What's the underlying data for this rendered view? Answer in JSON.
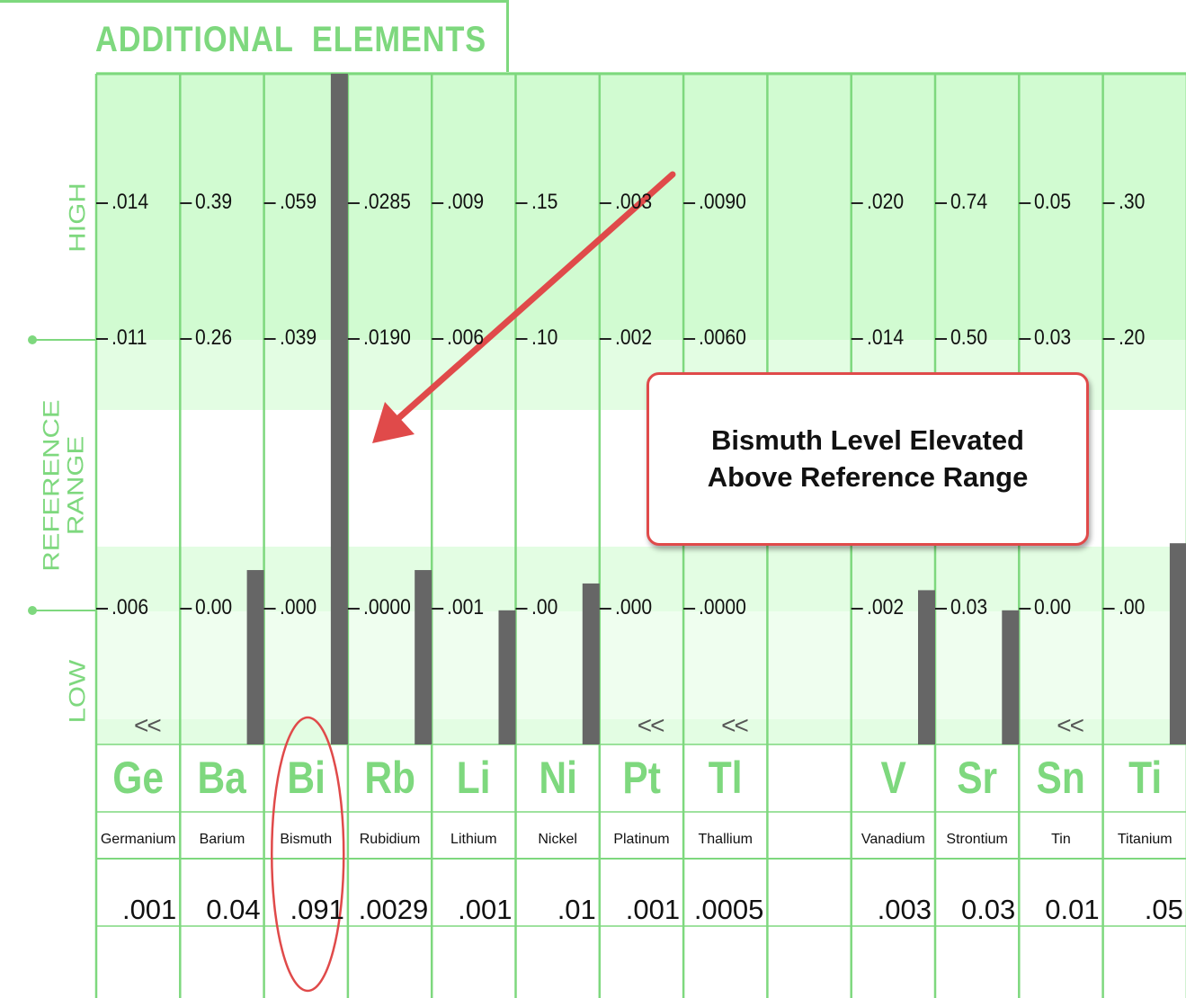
{
  "title": "ADDITIONAL  ELEMENTS",
  "axis": {
    "high": "HIGH",
    "reference_range": "REFERENCE RANGE",
    "low": "LOW"
  },
  "callout": {
    "line1": "Bismuth Level Elevated",
    "line2": "Above Reference Range"
  },
  "colors": {
    "grid": "#7ed87e",
    "band_dark": "#d1fbd1",
    "band_mid": "#e3fde3",
    "band_light": "#effeef",
    "bar": "#666666",
    "annotation": "#e04a4a",
    "label_green": "#7ed87e"
  },
  "chart_data": {
    "type": "bar",
    "title": "ADDITIONAL  ELEMENTS",
    "categories": [
      "Ge",
      "Ba",
      "Bi",
      "Rb",
      "Li",
      "Ni",
      "Pt",
      "Tl",
      "",
      "V",
      "Sr",
      "Sn",
      "Ti"
    ],
    "element_names": [
      "Germanium",
      "Barium",
      "Bismuth",
      "Rubidium",
      "Lithium",
      "Nickel",
      "Platinum",
      "Thallium",
      "",
      "Vanadium",
      "Strontium",
      "Tin",
      "Titanium"
    ],
    "results": [
      ".001",
      "0.04",
      ".091",
      ".0029",
      ".001",
      ".01",
      ".001",
      ".0005",
      "",
      ".003",
      "0.03",
      "0.01",
      ".05"
    ],
    "ticks_high": [
      ".014",
      "0.39",
      ".059",
      ".0285",
      ".009",
      ".15",
      ".003",
      ".0090",
      "",
      ".020",
      "0.74",
      "0.05",
      ".30"
    ],
    "ticks_ref_high": [
      ".011",
      "0.26",
      ".039",
      ".0190",
      ".006",
      ".10",
      ".002",
      ".0060",
      "",
      ".014",
      "0.50",
      "0.03",
      ".20"
    ],
    "ticks_ref_low": [
      ".006",
      "0.00",
      ".000",
      ".0000",
      ".001",
      ".00",
      ".000",
      ".0000",
      "",
      ".002",
      "0.03",
      "0.00",
      ".00"
    ],
    "below_detection": [
      true,
      false,
      false,
      false,
      false,
      false,
      true,
      true,
      false,
      false,
      false,
      true,
      false
    ],
    "below_detection_mark": "<<",
    "level_fraction": [
      0,
      0.26,
      1.0,
      0.26,
      0.2,
      0.24,
      0,
      0,
      0,
      0.23,
      0.2,
      0,
      0.3
    ],
    "ylabel_top": "HIGH",
    "ylabel_mid": "REFERENCE RANGE",
    "ylabel_bottom": "LOW",
    "highlighted": "Bi",
    "grid": true
  }
}
